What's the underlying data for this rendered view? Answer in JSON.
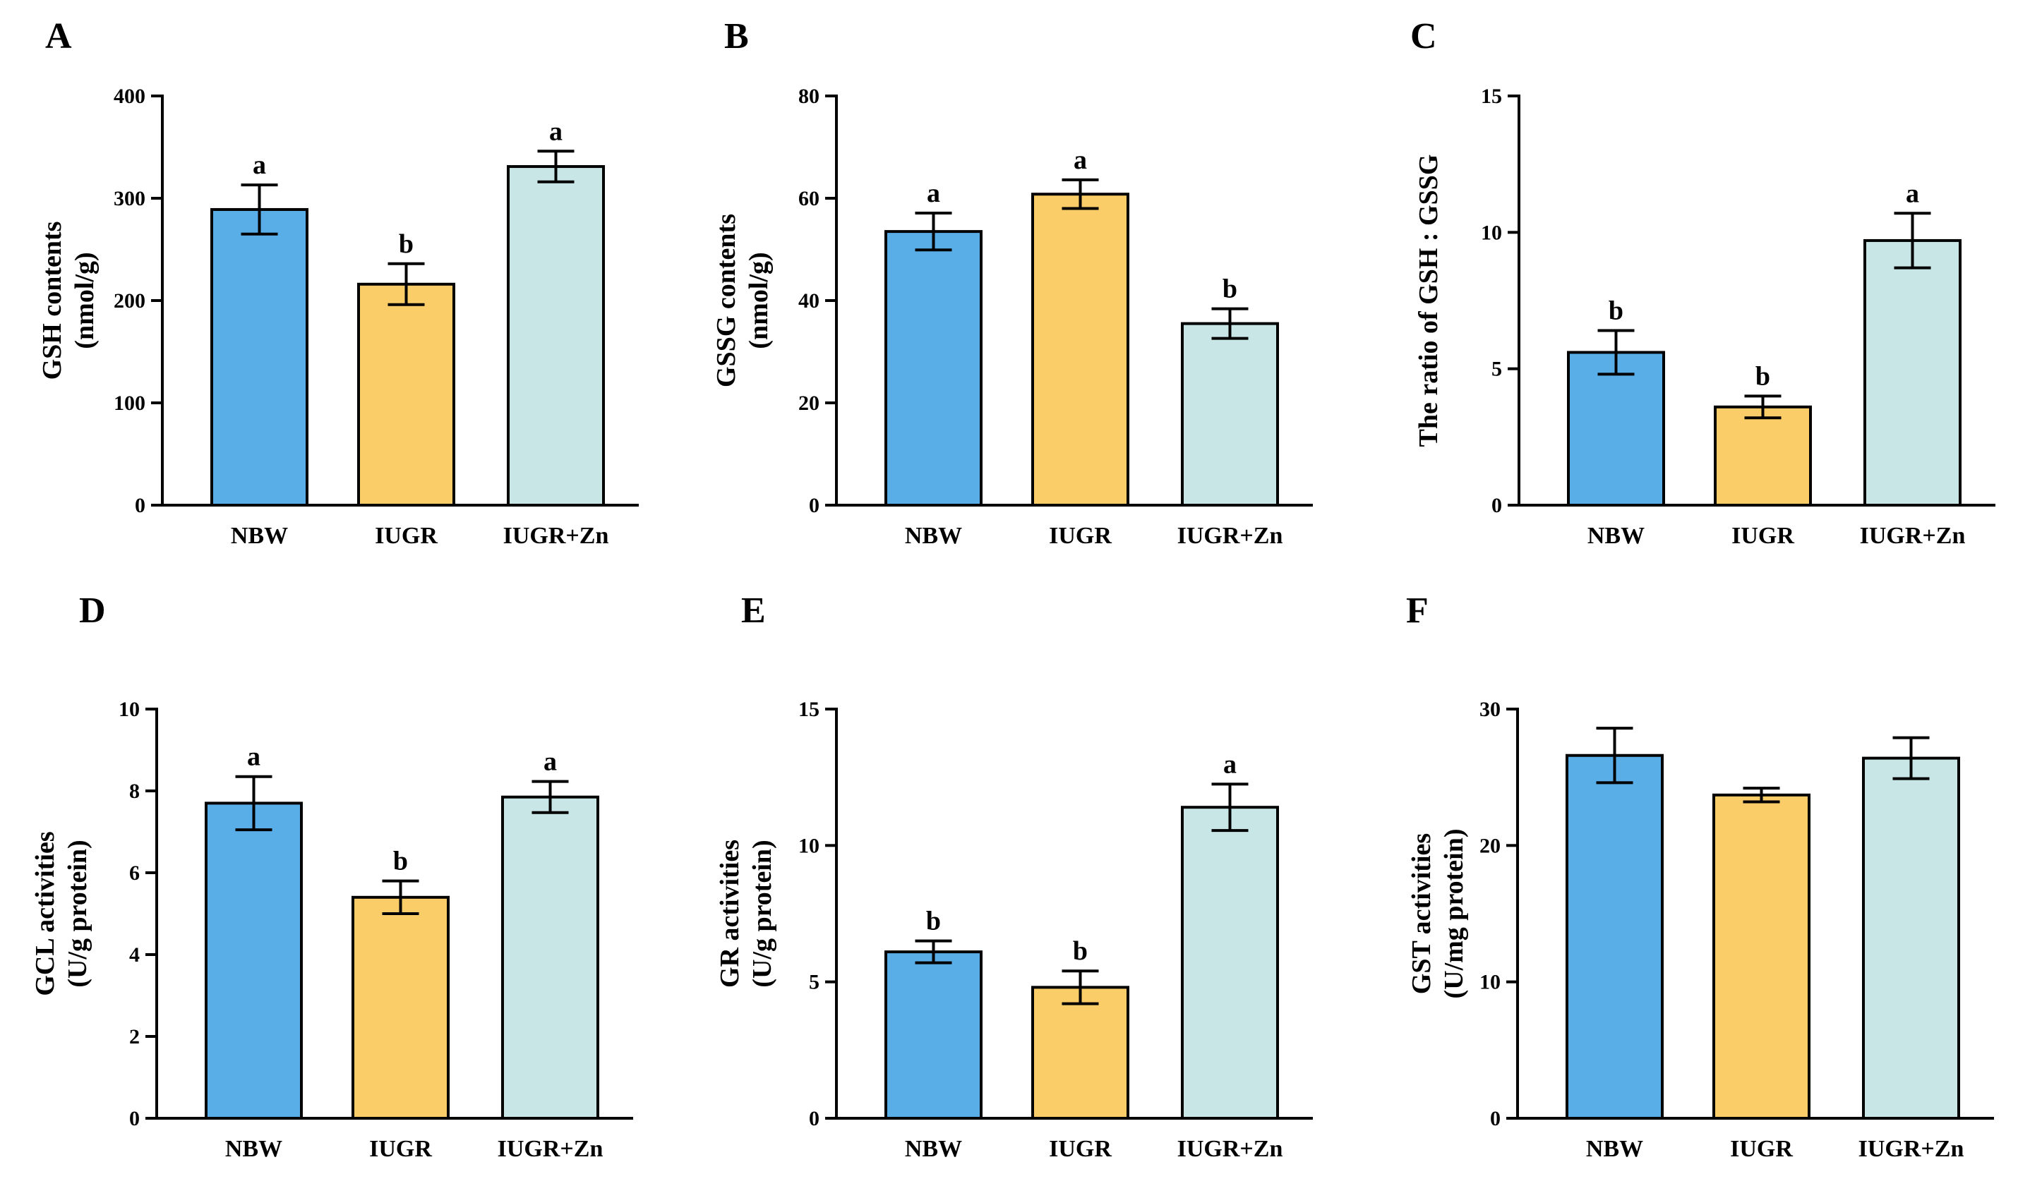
{
  "colors": {
    "NBW": "#5aaee8",
    "IUGR": "#fbcd68",
    "IUGR+Zn": "#c9e6e6",
    "stroke": "#000000"
  },
  "chart_data": [
    {
      "type": "bar",
      "panel": "A",
      "categories": [
        "NBW",
        "IUGR",
        "IUGR+Zn"
      ],
      "values": [
        289,
        216,
        331
      ],
      "errors": [
        24,
        20,
        15
      ],
      "significance": [
        "a",
        "b",
        "a"
      ],
      "ylabel_line1": "GSH contents",
      "ylabel_line2": "(nmol/g)",
      "ylim": [
        0,
        400
      ],
      "yticks": [
        0,
        100,
        200,
        300,
        400
      ]
    },
    {
      "type": "bar",
      "panel": "B",
      "categories": [
        "NBW",
        "IUGR",
        "IUGR+Zn"
      ],
      "values": [
        53.5,
        60.8,
        35.5
      ],
      "errors": [
        3.6,
        2.8,
        2.9
      ],
      "significance": [
        "a",
        "a",
        "b"
      ],
      "ylabel_line1": "GSSG contents",
      "ylabel_line2": "(nmol/g)",
      "ylim": [
        0,
        80
      ],
      "yticks": [
        0,
        20,
        40,
        60,
        80
      ]
    },
    {
      "type": "bar",
      "panel": "C",
      "categories": [
        "NBW",
        "IUGR",
        "IUGR+Zn"
      ],
      "values": [
        5.6,
        3.6,
        9.7
      ],
      "errors": [
        0.8,
        0.4,
        1.0
      ],
      "significance": [
        "b",
        "b",
        "a"
      ],
      "ylabel_line1": "The ratio of GSH : GSSG",
      "ylabel_line2": "",
      "ylim": [
        0,
        15
      ],
      "yticks": [
        0,
        5,
        10,
        15
      ]
    },
    {
      "type": "bar",
      "panel": "D",
      "categories": [
        "NBW",
        "IUGR",
        "IUGR+Zn"
      ],
      "values": [
        7.7,
        5.4,
        7.85
      ],
      "errors": [
        0.65,
        0.4,
        0.38
      ],
      "significance": [
        "a",
        "b",
        "a"
      ],
      "ylabel_line1": "GCL activities",
      "ylabel_line2": "(U/g protein)",
      "ylim": [
        0,
        10
      ],
      "yticks": [
        0,
        2,
        4,
        6,
        8,
        10
      ]
    },
    {
      "type": "bar",
      "panel": "E",
      "categories": [
        "NBW",
        "IUGR",
        "IUGR+Zn"
      ],
      "values": [
        6.1,
        4.8,
        11.4
      ],
      "errors": [
        0.4,
        0.6,
        0.85
      ],
      "significance": [
        "b",
        "b",
        "a"
      ],
      "ylabel_line1": "GR activities",
      "ylabel_line2": "(U/g protein)",
      "ylim": [
        0,
        15
      ],
      "yticks": [
        0,
        5,
        10,
        15
      ]
    },
    {
      "type": "bar",
      "panel": "F",
      "categories": [
        "NBW",
        "IUGR",
        "IUGR+Zn"
      ],
      "values": [
        26.6,
        23.7,
        26.4
      ],
      "errors": [
        2.0,
        0.5,
        1.5
      ],
      "significance": [
        "",
        "",
        ""
      ],
      "ylabel_line1": "GST activities",
      "ylabel_line2": "(U/mg protein)",
      "ylim": [
        0,
        30
      ],
      "yticks": [
        0,
        10,
        20,
        30
      ]
    }
  ]
}
